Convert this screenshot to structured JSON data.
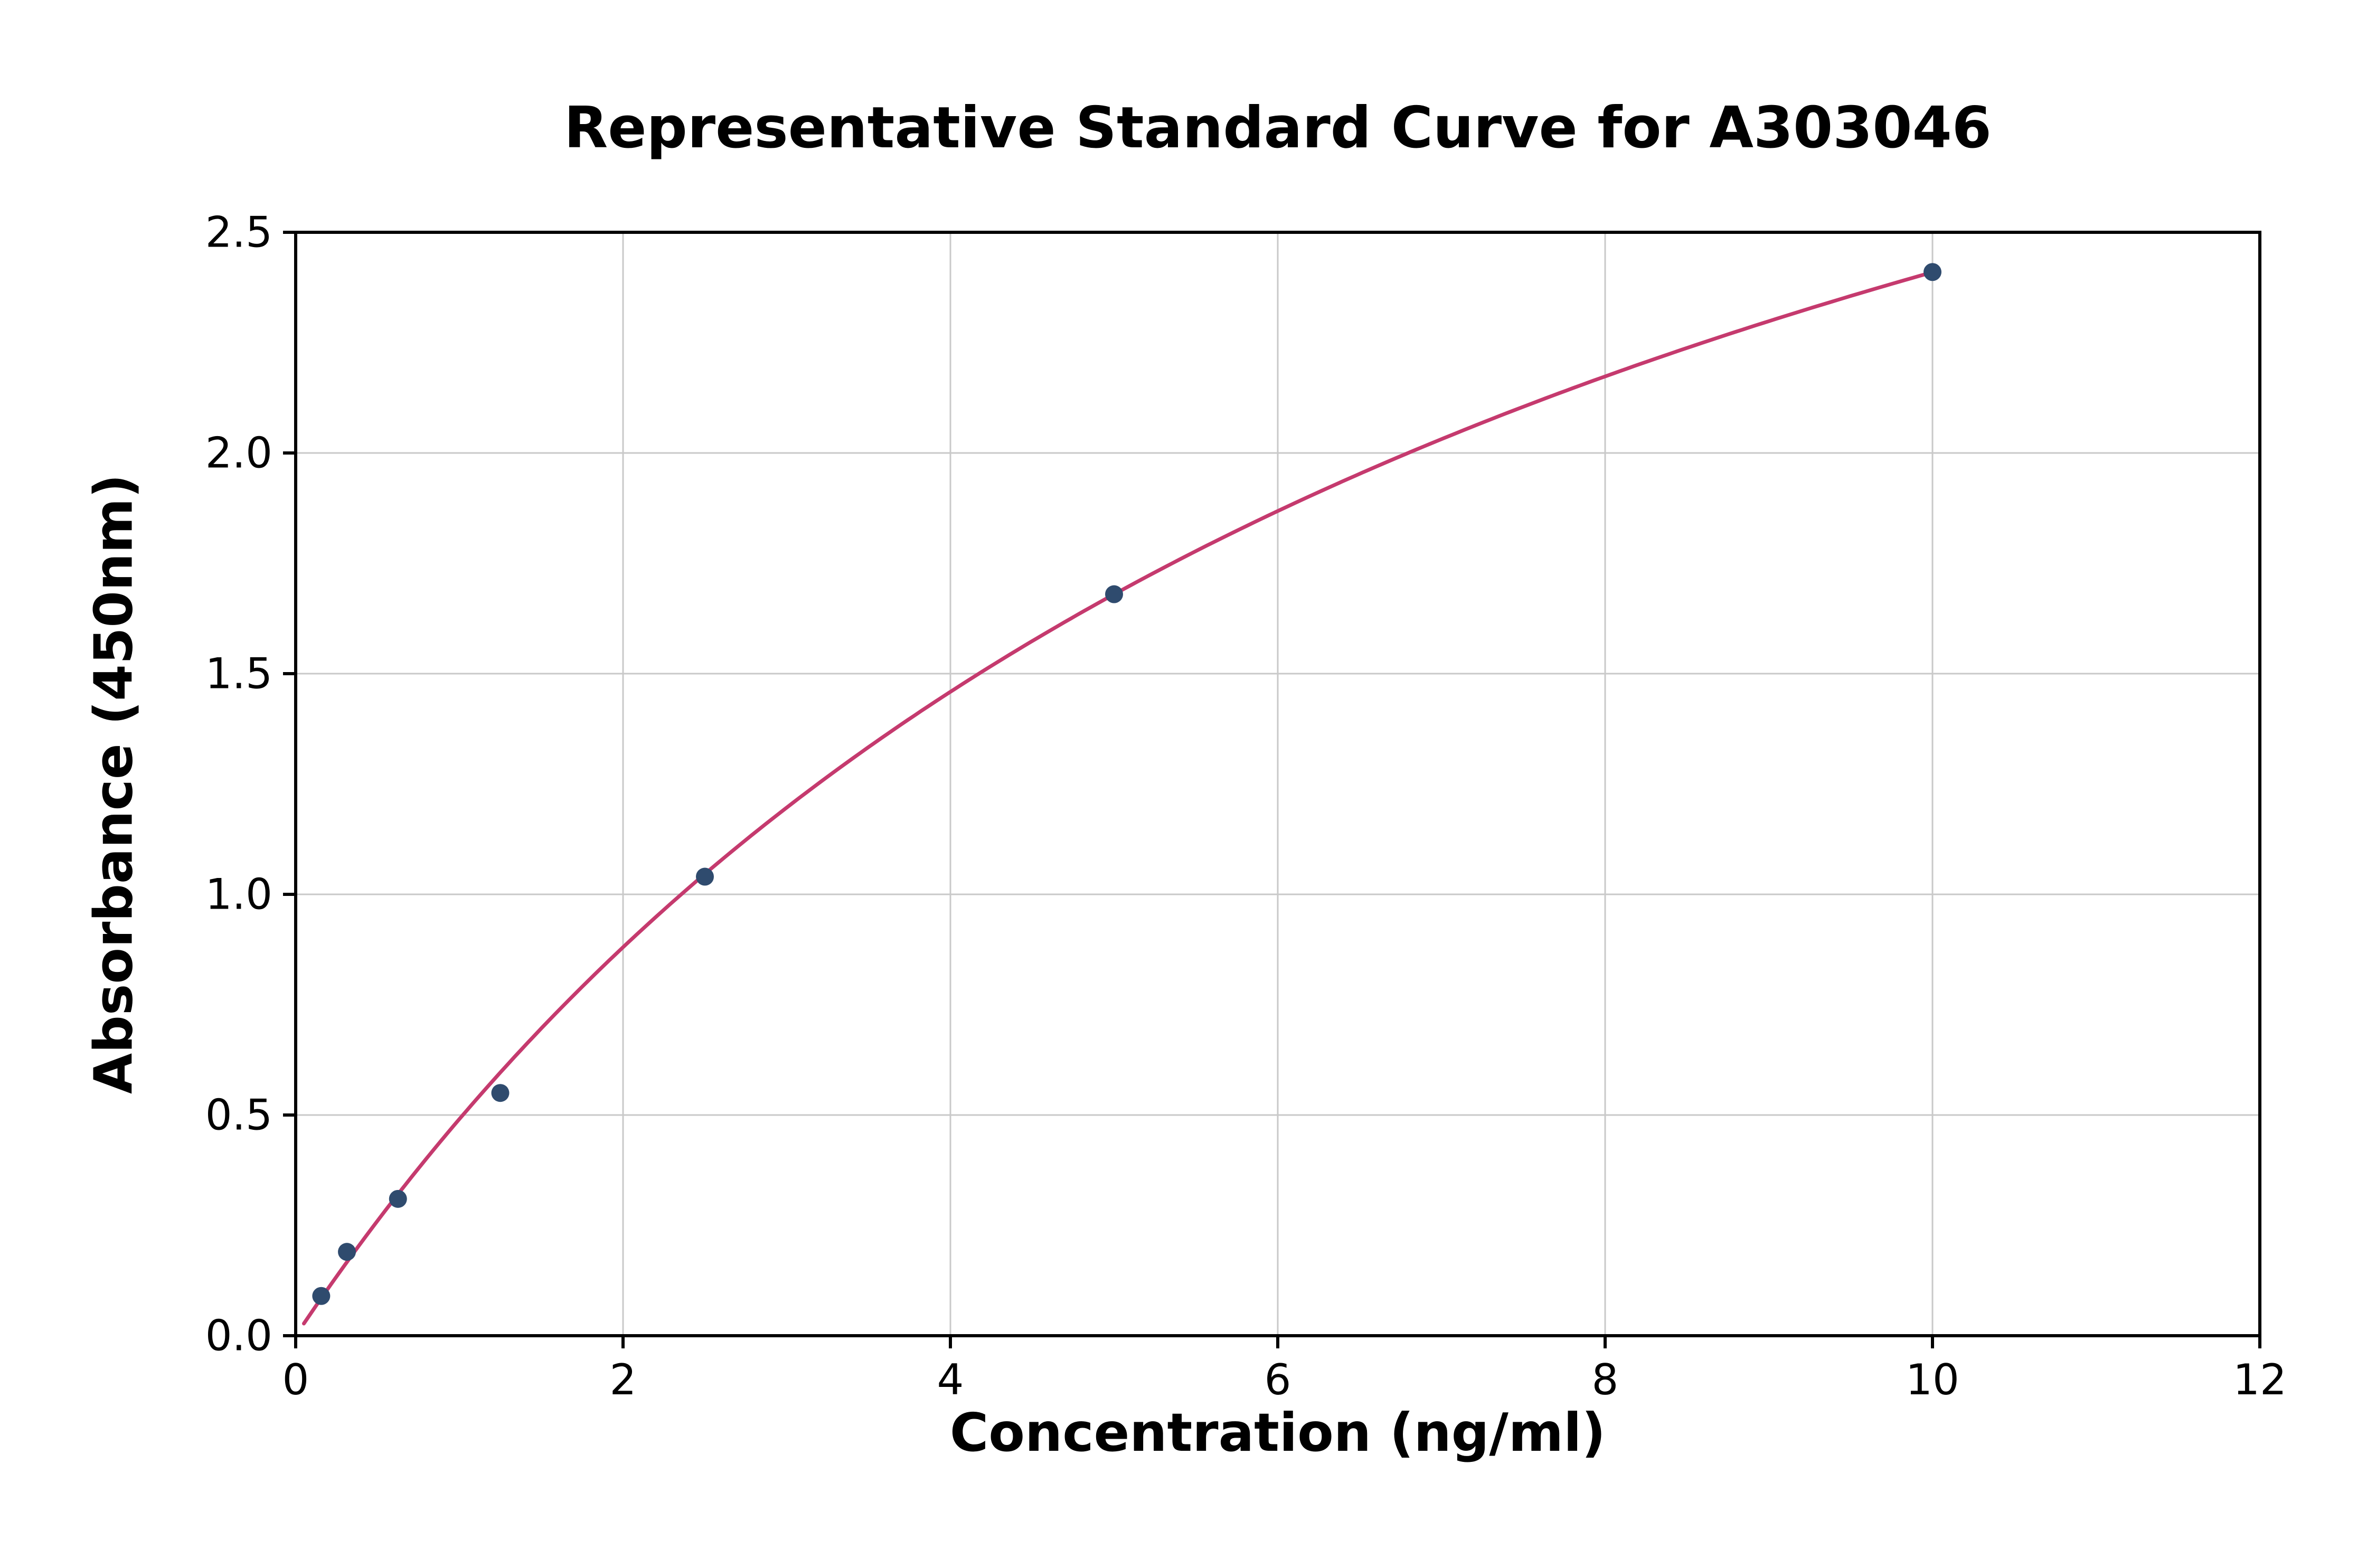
{
  "chart_data": {
    "type": "scatter",
    "title": "Representative Standard Curve for A303046",
    "xlabel": "Concentration (ng/ml)",
    "ylabel": "Absorbance (450nm)",
    "xlim": [
      0,
      12
    ],
    "ylim": [
      0,
      2.5
    ],
    "x_ticks": [
      0,
      2,
      4,
      6,
      8,
      10,
      12
    ],
    "x_tick_labels": [
      "0",
      "2",
      "4",
      "6",
      "8",
      "10",
      "12"
    ],
    "y_ticks": [
      0,
      0.5,
      1.0,
      1.5,
      2.0,
      2.5
    ],
    "y_tick_labels": [
      "0.0",
      "0.5",
      "1.0",
      "1.5",
      "2.0",
      "2.5"
    ],
    "grid": true,
    "legend": "none",
    "points": [
      {
        "x": 0.156,
        "y": 0.09
      },
      {
        "x": 0.313,
        "y": 0.19
      },
      {
        "x": 0.625,
        "y": 0.31
      },
      {
        "x": 1.25,
        "y": 0.55
      },
      {
        "x": 2.5,
        "y": 1.04
      },
      {
        "x": 5.0,
        "y": 1.68
      },
      {
        "x": 10.0,
        "y": 2.41
      }
    ],
    "fit_curve": {
      "model": "y = a*x / (b + x)",
      "a": 4.26,
      "b": 7.68,
      "x_range": [
        0.05,
        10.0
      ]
    },
    "colors": {
      "line": "#c53a6e",
      "point": "#2f4b6e",
      "grid": "#c9c9c9",
      "axis": "#000000",
      "text": "#000000",
      "background": "#ffffff"
    }
  }
}
